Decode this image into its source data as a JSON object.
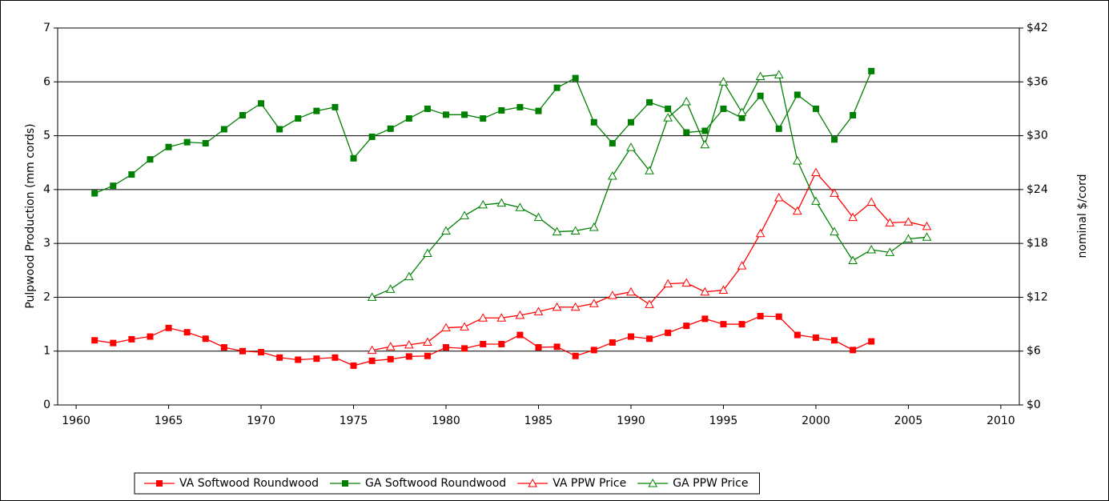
{
  "chart_data": {
    "type": "line",
    "ylabel": "Pulpwood Production (mm cords)",
    "y2label": "nominal $/cord",
    "xlim": [
      1959,
      2011
    ],
    "xticks": [
      1960,
      1965,
      1970,
      1975,
      1980,
      1985,
      1990,
      1995,
      2000,
      2005,
      2010
    ],
    "ylim": [
      0,
      7
    ],
    "yticks": [
      0,
      1,
      2,
      3,
      4,
      5,
      6,
      7
    ],
    "y2lim": [
      0,
      42
    ],
    "y2ticks": [
      {
        "value": 0,
        "label": "$0"
      },
      {
        "value": 6,
        "label": "$6"
      },
      {
        "value": 12,
        "label": "$12"
      },
      {
        "value": 18,
        "label": "$18"
      },
      {
        "value": 24,
        "label": "$24"
      },
      {
        "value": 30,
        "label": "$30"
      },
      {
        "value": 36,
        "label": "$36"
      },
      {
        "value": 42,
        "label": "$42"
      }
    ],
    "grid": true,
    "legend": "bottom",
    "series": [
      {
        "name": "VA Softwood Roundwood",
        "color": "#ff0000",
        "marker": "square",
        "x": [
          1961,
          1962,
          1963,
          1964,
          1965,
          1966,
          1967,
          1968,
          1969,
          1970,
          1971,
          1972,
          1973,
          1974,
          1975,
          1976,
          1977,
          1978,
          1979,
          1980,
          1981,
          1982,
          1983,
          1984,
          1985,
          1986,
          1987,
          1988,
          1989,
          1990,
          1991,
          1992,
          1993,
          1994,
          1995,
          1996,
          1997,
          1998,
          1999,
          2000,
          2001,
          2002,
          2003
        ],
        "values": [
          1.2,
          1.15,
          1.22,
          1.27,
          1.43,
          1.35,
          1.23,
          1.07,
          1.0,
          0.98,
          0.88,
          0.84,
          0.86,
          0.88,
          0.73,
          0.82,
          0.85,
          0.9,
          0.91,
          1.07,
          1.05,
          1.13,
          1.13,
          1.3,
          1.07,
          1.08,
          0.91,
          1.02,
          1.16,
          1.27,
          1.23,
          1.34,
          1.47,
          1.6,
          1.5,
          1.5,
          1.65,
          1.64,
          1.3,
          1.25,
          1.2,
          1.02,
          1.18
        ]
      },
      {
        "name": "GA Softwood Roundwood",
        "color": "#008000",
        "marker": "square",
        "x": [
          1961,
          1962,
          1963,
          1964,
          1965,
          1966,
          1967,
          1968,
          1969,
          1970,
          1971,
          1972,
          1973,
          1974,
          1975,
          1976,
          1977,
          1978,
          1979,
          1980,
          1981,
          1982,
          1983,
          1984,
          1985,
          1986,
          1987,
          1988,
          1989,
          1990,
          1991,
          1992,
          1993,
          1994,
          1995,
          1996,
          1997,
          1998,
          1999,
          2000,
          2001,
          2002,
          2003
        ],
        "values": [
          3.93,
          4.07,
          4.28,
          4.56,
          4.79,
          4.88,
          4.86,
          5.12,
          5.38,
          5.6,
          5.12,
          5.32,
          5.46,
          5.53,
          4.58,
          4.98,
          5.13,
          5.32,
          5.5,
          5.39,
          5.39,
          5.32,
          5.47,
          5.53,
          5.46,
          5.89,
          6.07,
          5.25,
          4.86,
          5.25,
          5.62,
          5.5,
          5.06,
          5.09,
          5.5,
          5.33,
          5.74,
          5.13,
          5.76,
          5.5,
          4.93,
          5.38,
          6.2
        ]
      },
      {
        "name": "VA PPW Price",
        "color": "#ff0000",
        "marker": "triangle",
        "axis": "y2",
        "x": [
          1976,
          1977,
          1978,
          1979,
          1980,
          1981,
          1982,
          1983,
          1984,
          1985,
          1986,
          1987,
          1988,
          1989,
          1990,
          1991,
          1992,
          1993,
          1994,
          1995,
          1996,
          1997,
          1998,
          1999,
          2000,
          2001,
          2002,
          2003,
          2004,
          2005,
          2006
        ],
        "values": [
          6.1,
          6.5,
          6.7,
          7.0,
          8.6,
          8.7,
          9.7,
          9.7,
          10.0,
          10.4,
          10.9,
          10.9,
          11.3,
          12.2,
          12.6,
          11.2,
          13.5,
          13.6,
          12.6,
          12.8,
          15.5,
          19.1,
          23.1,
          21.6,
          25.9,
          23.6,
          20.9,
          22.6,
          20.3,
          20.4,
          19.9
        ]
      },
      {
        "name": "GA PPW Price",
        "color": "#008000",
        "marker": "triangle",
        "axis": "y2",
        "x": [
          1976,
          1977,
          1978,
          1979,
          1980,
          1981,
          1982,
          1983,
          1984,
          1985,
          1986,
          1987,
          1988,
          1989,
          1990,
          1991,
          1992,
          1993,
          1994,
          1995,
          1996,
          1997,
          1998,
          1999,
          2000,
          2001,
          2002,
          2003,
          2004,
          2005,
          2006
        ],
        "values": [
          12.0,
          12.9,
          14.3,
          16.9,
          19.4,
          21.1,
          22.3,
          22.5,
          22.0,
          20.9,
          19.3,
          19.4,
          19.8,
          25.5,
          28.7,
          26.1,
          32.0,
          33.8,
          29.0,
          36.0,
          32.6,
          36.6,
          36.8,
          27.2,
          22.7,
          19.3,
          16.1,
          17.3,
          17.0,
          18.5,
          18.7
        ]
      }
    ]
  }
}
